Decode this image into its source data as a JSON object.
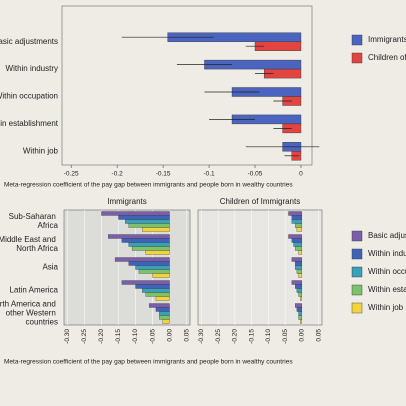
{
  "chart_data": [
    {
      "type": "hbar",
      "categories": [
        "Basic adjustments",
        "Within industry",
        "Within occupation",
        "Within establishment",
        "Within job"
      ],
      "series": [
        {
          "name": "Immigrants",
          "color": "#4a64c0",
          "values": [
            -0.145,
            -0.105,
            -0.075,
            -0.075,
            -0.02
          ],
          "errors": [
            0.05,
            0.03,
            0.03,
            0.025,
            0.04
          ]
        },
        {
          "name": "Children of Immigrants",
          "color": "#e2443f",
          "values": [
            -0.05,
            -0.04,
            -0.02,
            -0.02,
            -0.01
          ],
          "errors": [
            0.01,
            0.01,
            0.01,
            0.01,
            0.008
          ]
        }
      ],
      "xlim": [
        -0.26,
        0.012
      ],
      "xticks": [
        -0.25,
        -0.2,
        -0.15,
        -0.1,
        -0.05,
        0
      ],
      "xlabel": "Meta-regression coefficient of the pay gap between immigrants and people born in wealthy countries"
    },
    {
      "type": "hbar-panels",
      "categories": [
        "Sub-Saharan Africa",
        "Middle East and North Africa",
        "Asia",
        "Latin America",
        "North America and other Western countries"
      ],
      "series": [
        {
          "name": "Basic adjustments",
          "color": "#7a5ea8"
        },
        {
          "name": "Within industry",
          "color": "#3f63b8"
        },
        {
          "name": "Within occupation",
          "color": "#3a9fb8"
        },
        {
          "name": "Within establishment",
          "color": "#7cc26a"
        },
        {
          "name": "Within job",
          "color": "#f2d43c"
        }
      ],
      "panels": [
        {
          "title": "Immigrants",
          "series": [
            {
              "values": [
                -0.2,
                -0.18,
                -0.16,
                -0.14,
                -0.06
              ]
            },
            {
              "values": [
                -0.15,
                -0.14,
                -0.12,
                -0.1,
                -0.04
              ]
            },
            {
              "values": [
                -0.13,
                -0.12,
                -0.1,
                -0.08,
                -0.03
              ]
            },
            {
              "values": [
                -0.12,
                -0.11,
                -0.09,
                -0.07,
                -0.03
              ]
            },
            {
              "values": [
                -0.08,
                -0.07,
                -0.05,
                -0.04,
                -0.02
              ]
            }
          ]
        },
        {
          "title": "Children of Immigrants",
          "series": [
            {
              "values": [
                -0.04,
                -0.04,
                -0.03,
                -0.03,
                -0.02
              ]
            },
            {
              "values": [
                -0.03,
                -0.03,
                -0.02,
                -0.02,
                -0.015
              ]
            },
            {
              "values": [
                -0.03,
                -0.025,
                -0.02,
                -0.015,
                -0.01
              ]
            },
            {
              "values": [
                -0.02,
                -0.02,
                -0.015,
                -0.01,
                -0.01
              ]
            },
            {
              "values": [
                -0.015,
                -0.01,
                -0.01,
                -0.005,
                -0.005
              ]
            }
          ]
        }
      ],
      "xlim": [
        -0.31,
        0.06
      ],
      "xticks": [
        {
          "value": -0.3,
          "label": "-0.30"
        },
        -0.25,
        {
          "value": -0.2,
          "label": "-0.20"
        },
        -0.15,
        {
          "value": -0.1,
          "label": "-0.10"
        },
        -0.05,
        {
          "value": 0,
          "label": "0.00"
        },
        0.05
      ],
      "xlabel": "Meta-regression coefficient of the pay gap between immigrants and people born in wealthy countries"
    }
  ]
}
